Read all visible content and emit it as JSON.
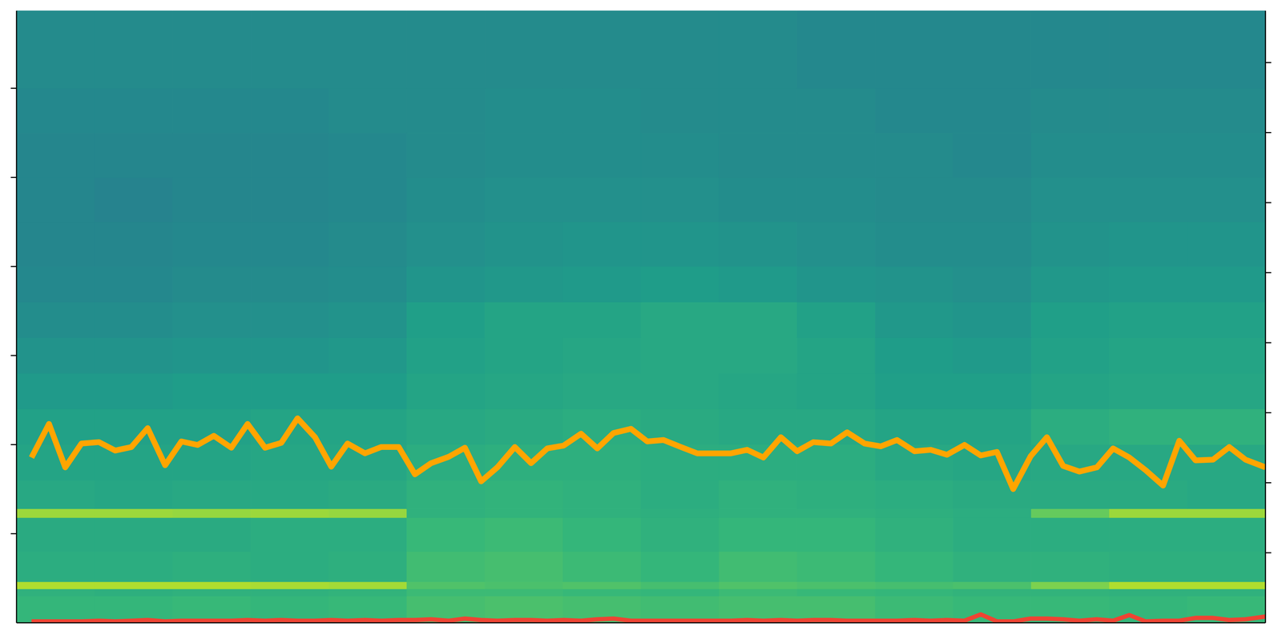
{
  "chart_data": {
    "type": "heatmap",
    "tick_labels": false,
    "xlim": [
      0,
      100
    ],
    "ylim": [
      0,
      6.87
    ],
    "yticks": [
      1,
      2,
      3,
      4,
      5,
      6
    ],
    "y2lim": [
      0,
      8.74
    ],
    "y2ticks": [
      1,
      2,
      3,
      4,
      5,
      6,
      7,
      8
    ],
    "heatmap": {
      "color_range": [
        0,
        1
      ],
      "x_edges": [
        0,
        6.25,
        12.5,
        18.75,
        25,
        31.25,
        37.5,
        43.75,
        50,
        56.25,
        62.5,
        68.75,
        75,
        81.25,
        87.5,
        93.75,
        100
      ],
      "y_edges": [
        0,
        0.3,
        0.38,
        0.46,
        0.8,
        1.18,
        1.28,
        1.6,
        2.0,
        2.4,
        2.8,
        3.2,
        3.6,
        4.0,
        4.5,
        5.0,
        5.5,
        6.0,
        6.87
      ],
      "cells": [
        [
          0.66,
          0.66,
          0.67,
          0.66,
          0.67,
          0.7,
          0.71,
          0.7,
          0.69,
          0.7,
          0.7,
          0.68,
          0.67,
          0.67,
          0.66,
          0.67
        ],
        [
          0.64,
          0.63,
          0.64,
          0.64,
          0.65,
          0.68,
          0.68,
          0.67,
          0.66,
          0.68,
          0.67,
          0.66,
          0.65,
          0.65,
          0.64,
          0.64
        ],
        [
          0.88,
          0.88,
          0.88,
          0.87,
          0.86,
          0.72,
          0.71,
          0.72,
          0.7,
          0.72,
          0.71,
          0.7,
          0.71,
          0.8,
          0.88,
          0.88
        ],
        [
          0.62,
          0.62,
          0.63,
          0.62,
          0.63,
          0.69,
          0.7,
          0.68,
          0.66,
          0.69,
          0.68,
          0.66,
          0.64,
          0.64,
          0.63,
          0.63
        ],
        [
          0.61,
          0.61,
          0.61,
          0.62,
          0.62,
          0.67,
          0.68,
          0.66,
          0.64,
          0.66,
          0.66,
          0.64,
          0.62,
          0.62,
          0.62,
          0.62
        ],
        [
          0.85,
          0.85,
          0.84,
          0.85,
          0.84,
          0.64,
          0.65,
          0.64,
          0.63,
          0.64,
          0.64,
          0.63,
          0.62,
          0.76,
          0.85,
          0.85
        ],
        [
          0.6,
          0.59,
          0.6,
          0.6,
          0.61,
          0.64,
          0.65,
          0.64,
          0.62,
          0.64,
          0.63,
          0.62,
          0.61,
          0.61,
          0.61,
          0.6
        ],
        [
          0.58,
          0.58,
          0.58,
          0.59,
          0.59,
          0.62,
          0.63,
          0.63,
          0.62,
          0.62,
          0.62,
          0.6,
          0.59,
          0.6,
          0.6,
          0.6
        ],
        [
          0.57,
          0.57,
          0.57,
          0.58,
          0.58,
          0.6,
          0.61,
          0.62,
          0.61,
          0.6,
          0.6,
          0.58,
          0.58,
          0.62,
          0.64,
          0.64
        ],
        [
          0.54,
          0.54,
          0.55,
          0.55,
          0.55,
          0.58,
          0.59,
          0.6,
          0.6,
          0.59,
          0.58,
          0.56,
          0.56,
          0.58,
          0.59,
          0.59
        ],
        [
          0.51,
          0.51,
          0.52,
          0.52,
          0.53,
          0.57,
          0.58,
          0.59,
          0.6,
          0.6,
          0.58,
          0.55,
          0.54,
          0.57,
          0.58,
          0.58
        ],
        [
          0.49,
          0.49,
          0.5,
          0.5,
          0.51,
          0.56,
          0.58,
          0.58,
          0.6,
          0.6,
          0.57,
          0.53,
          0.52,
          0.56,
          0.57,
          0.57
        ],
        [
          0.47,
          0.47,
          0.48,
          0.48,
          0.49,
          0.52,
          0.53,
          0.54,
          0.55,
          0.54,
          0.52,
          0.51,
          0.5,
          0.53,
          0.54,
          0.54
        ],
        [
          0.46,
          0.46,
          0.47,
          0.47,
          0.48,
          0.5,
          0.51,
          0.52,
          0.52,
          0.51,
          0.5,
          0.49,
          0.49,
          0.51,
          0.52,
          0.52
        ],
        [
          0.46,
          0.45,
          0.46,
          0.46,
          0.47,
          0.49,
          0.5,
          0.5,
          0.5,
          0.49,
          0.49,
          0.48,
          0.48,
          0.5,
          0.5,
          0.5
        ],
        [
          0.46,
          0.46,
          0.46,
          0.46,
          0.47,
          0.48,
          0.49,
          0.49,
          0.49,
          0.48,
          0.48,
          0.48,
          0.47,
          0.49,
          0.49,
          0.49
        ],
        [
          0.47,
          0.47,
          0.47,
          0.47,
          0.48,
          0.48,
          0.49,
          0.49,
          0.48,
          0.48,
          0.48,
          0.47,
          0.47,
          0.48,
          0.48,
          0.48
        ],
        [
          0.48,
          0.48,
          0.48,
          0.48,
          0.48,
          0.48,
          0.48,
          0.48,
          0.48,
          0.48,
          0.47,
          0.47,
          0.47,
          0.47,
          0.47,
          0.47
        ]
      ]
    },
    "x": [
      1.2,
      2.6,
      3.9,
      5.2,
      6.6,
      7.9,
      9.2,
      10.5,
      11.9,
      13.2,
      14.5,
      15.8,
      17.2,
      18.5,
      19.9,
      21.2,
      22.5,
      23.9,
      25.2,
      26.5,
      27.9,
      29.2,
      30.6,
      31.9,
      33.2,
      34.6,
      35.9,
      37.2,
      38.5,
      39.9,
      41.2,
      42.5,
      43.8,
      45.2,
      46.5,
      47.8,
      49.2,
      50.5,
      51.8,
      53.2,
      54.5,
      55.8,
      57.2,
      58.5,
      59.8,
      61.2,
      62.5,
      63.8,
      65.2,
      66.5,
      67.9,
      69.2,
      70.5,
      71.9,
      73.2,
      74.5,
      75.9,
      77.2,
      78.5,
      79.8,
      81.2,
      82.5,
      83.8,
      85.1,
      86.5,
      87.8,
      89.1,
      90.4,
      91.8,
      93.1,
      94.4,
      95.8,
      97.1,
      98.4,
      100
    ],
    "series": [
      {
        "type": "line",
        "color": "#ffa500",
        "axis": "y2",
        "values": [
          2.36,
          2.84,
          2.22,
          2.56,
          2.58,
          2.46,
          2.51,
          2.78,
          2.25,
          2.59,
          2.54,
          2.67,
          2.5,
          2.84,
          2.5,
          2.57,
          2.92,
          2.65,
          2.23,
          2.56,
          2.42,
          2.51,
          2.51,
          2.12,
          2.28,
          2.37,
          2.5,
          2.02,
          2.22,
          2.51,
          2.28,
          2.49,
          2.53,
          2.7,
          2.49,
          2.71,
          2.77,
          2.59,
          2.61,
          2.51,
          2.42,
          2.42,
          2.42,
          2.47,
          2.36,
          2.65,
          2.45,
          2.58,
          2.56,
          2.72,
          2.56,
          2.52,
          2.61,
          2.45,
          2.47,
          2.4,
          2.54,
          2.39,
          2.44,
          1.91,
          2.38,
          2.65,
          2.24,
          2.16,
          2.22,
          2.49,
          2.36,
          2.18,
          1.96,
          2.6,
          2.32,
          2.33,
          2.51,
          2.33,
          2.22
        ]
      },
      {
        "type": "line",
        "color": "#ee4433",
        "axis": "y2",
        "values": [
          0.02,
          0.02,
          0.02,
          0.02,
          0.03,
          0.02,
          0.03,
          0.04,
          0.02,
          0.03,
          0.03,
          0.03,
          0.03,
          0.04,
          0.03,
          0.04,
          0.03,
          0.03,
          0.04,
          0.03,
          0.04,
          0.03,
          0.04,
          0.04,
          0.05,
          0.03,
          0.06,
          0.04,
          0.03,
          0.04,
          0.04,
          0.03,
          0.04,
          0.03,
          0.05,
          0.06,
          0.03,
          0.03,
          0.03,
          0.03,
          0.03,
          0.03,
          0.03,
          0.04,
          0.03,
          0.04,
          0.03,
          0.04,
          0.04,
          0.03,
          0.03,
          0.03,
          0.03,
          0.04,
          0.03,
          0.04,
          0.03,
          0.12,
          0.02,
          0.02,
          0.06,
          0.06,
          0.05,
          0.03,
          0.05,
          0.03,
          0.11,
          0.02,
          0.03,
          0.03,
          0.07,
          0.07,
          0.04,
          0.05,
          0.09
        ]
      }
    ]
  }
}
